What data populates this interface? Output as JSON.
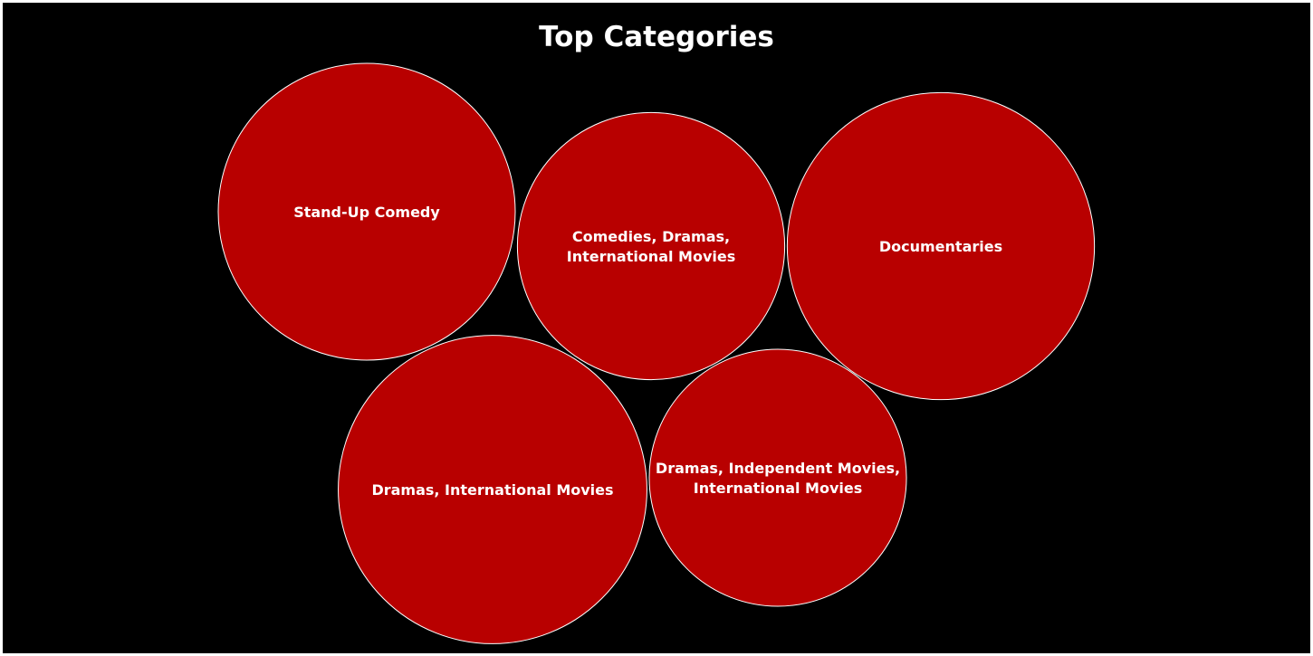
{
  "chart_data": {
    "type": "bubble",
    "title": "Top Categories",
    "colors": {
      "background": "#000000",
      "bubble_fill": "#b80000",
      "bubble_stroke": "#ffffff",
      "text": "#ffffff"
    },
    "categories": [
      "Stand-Up Comedy",
      "Comedies, Dramas, International Movies",
      "Documentaries",
      "Dramas, International Movies",
      "Dramas, Independent Movies, International Movies"
    ],
    "label_lines": [
      [
        "Stand-Up Comedy"
      ],
      [
        "Comedies, Dramas,",
        "International Movies"
      ],
      [
        "Documentaries"
      ],
      [
        "Dramas, International Movies"
      ],
      [
        "Dramas, Independent Movies,",
        "International Movies"
      ]
    ],
    "relative_size": [
      1.0,
      0.81,
      1.07,
      1.08,
      0.75
    ]
  }
}
